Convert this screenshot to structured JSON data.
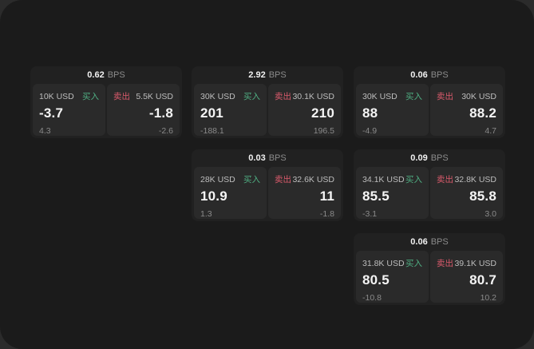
{
  "colors": {
    "window_bg": "#1b1b1b",
    "card_bg": "#212121",
    "panel_bg": "#2a2a2a",
    "buy_green": "#4fae82",
    "sell_red": "#d95a6b"
  },
  "cards": [
    {
      "bps_value": "0.62",
      "bps_unit": "BPS",
      "buy": {
        "amount": "10K USD",
        "side": "买入",
        "price": "-3.7",
        "delta": "4.3"
      },
      "sell": {
        "side": "卖出",
        "amount": "5.5K USD",
        "price": "-1.8",
        "delta": "-2.6"
      }
    },
    {
      "bps_value": "2.92",
      "bps_unit": "BPS",
      "buy": {
        "amount": "30K USD",
        "side": "买入",
        "price": "201",
        "delta": "-188.1"
      },
      "sell": {
        "side": "卖出",
        "amount": "30.1K USD",
        "price": "210",
        "delta": "196.5"
      }
    },
    {
      "bps_value": "0.06",
      "bps_unit": "BPS",
      "buy": {
        "amount": "30K USD",
        "side": "买入",
        "price": "88",
        "delta": "-4.9"
      },
      "sell": {
        "side": "卖出",
        "amount": "30K USD",
        "price": "88.2",
        "delta": "4.7"
      }
    },
    {
      "bps_value": "0.03",
      "bps_unit": "BPS",
      "buy": {
        "amount": "28K USD",
        "side": "买入",
        "price": "10.9",
        "delta": "1.3"
      },
      "sell": {
        "side": "卖出",
        "amount": "32.6K USD",
        "price": "11",
        "delta": "-1.8"
      }
    },
    {
      "bps_value": "0.09",
      "bps_unit": "BPS",
      "buy": {
        "amount": "34.1K USD",
        "side": "买入",
        "price": "85.5",
        "delta": "-3.1"
      },
      "sell": {
        "side": "卖出",
        "amount": "32.8K USD",
        "price": "85.8",
        "delta": "3.0"
      }
    },
    {
      "bps_value": "0.06",
      "bps_unit": "BPS",
      "buy": {
        "amount": "31.8K USD",
        "side": "买入",
        "price": "80.5",
        "delta": "-10.8"
      },
      "sell": {
        "side": "卖出",
        "amount": "39.1K USD",
        "price": "80.7",
        "delta": "10.2"
      }
    }
  ]
}
